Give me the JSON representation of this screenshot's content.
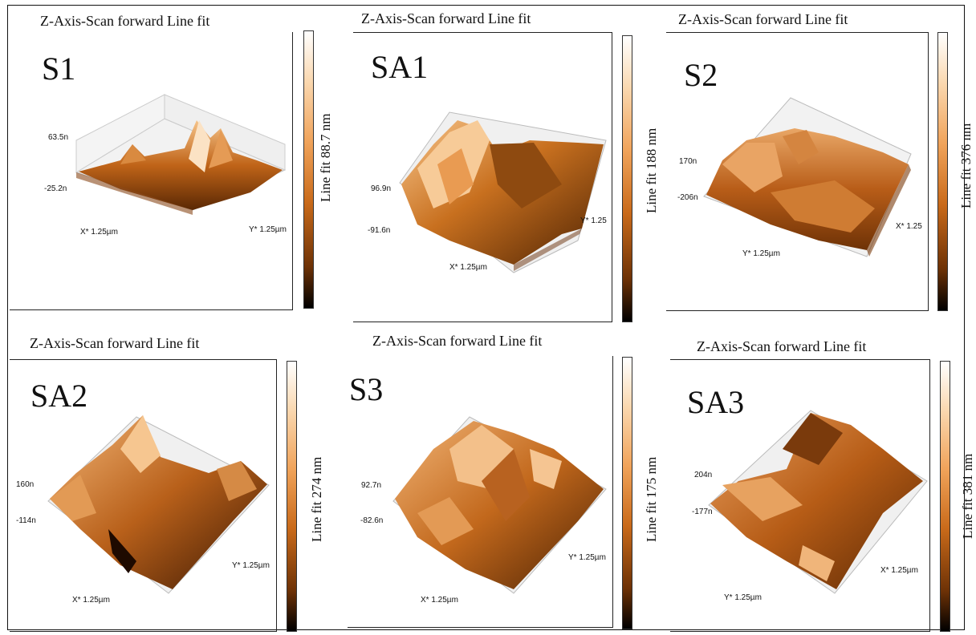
{
  "panels": [
    {
      "id": "S1",
      "title": "Z-Axis-Scan forward  Line fit",
      "label": "S1",
      "scale": "Line fit 88.7 nm",
      "z_max": "63.5n",
      "z_min": "-25.2n",
      "x_axis": "X* 1.25µm",
      "y_axis": "Y* 1.25µm"
    },
    {
      "id": "SA1",
      "title": "Z-Axis-Scan forward  Line fit",
      "label": "SA1",
      "scale": "Line fit 188 nm",
      "z_max": "96.9n",
      "z_min": "-91.6n",
      "x_axis": "X* 1.25µm",
      "y_axis": "Y* 1.25"
    },
    {
      "id": "S2",
      "title": "Z-Axis-Scan forward  Line fit",
      "label": "S2",
      "scale": "Line fit 376 nm",
      "z_max": "170n",
      "z_min": "-206n",
      "x_axis": "X* 1.25",
      "y_axis": "Y* 1.25µm"
    },
    {
      "id": "SA2",
      "title": "Z-Axis-Scan forward  Line fit",
      "label": "SA2",
      "scale": "Line fit 274 nm",
      "z_max": "160n",
      "z_min": "-114n",
      "x_axis": "X* 1.25µm",
      "y_axis": "Y* 1.25µm"
    },
    {
      "id": "S3",
      "title": "Z-Axis-Scan forward  Line fit",
      "label": "S3",
      "scale": "Line fit 175 nm",
      "z_max": "92.7n",
      "z_min": "-82.6n",
      "x_axis": "X* 1.25µm",
      "y_axis": "Y* 1.25µm"
    },
    {
      "id": "SA3",
      "title": "Z-Axis-Scan forward  Line fit",
      "label": "SA3",
      "scale": "Line fit 381 nm",
      "z_max": "204n",
      "z_min": "-177n",
      "x_axis": "X* 1.25µm",
      "y_axis": "Y* 1.25µm"
    }
  ]
}
